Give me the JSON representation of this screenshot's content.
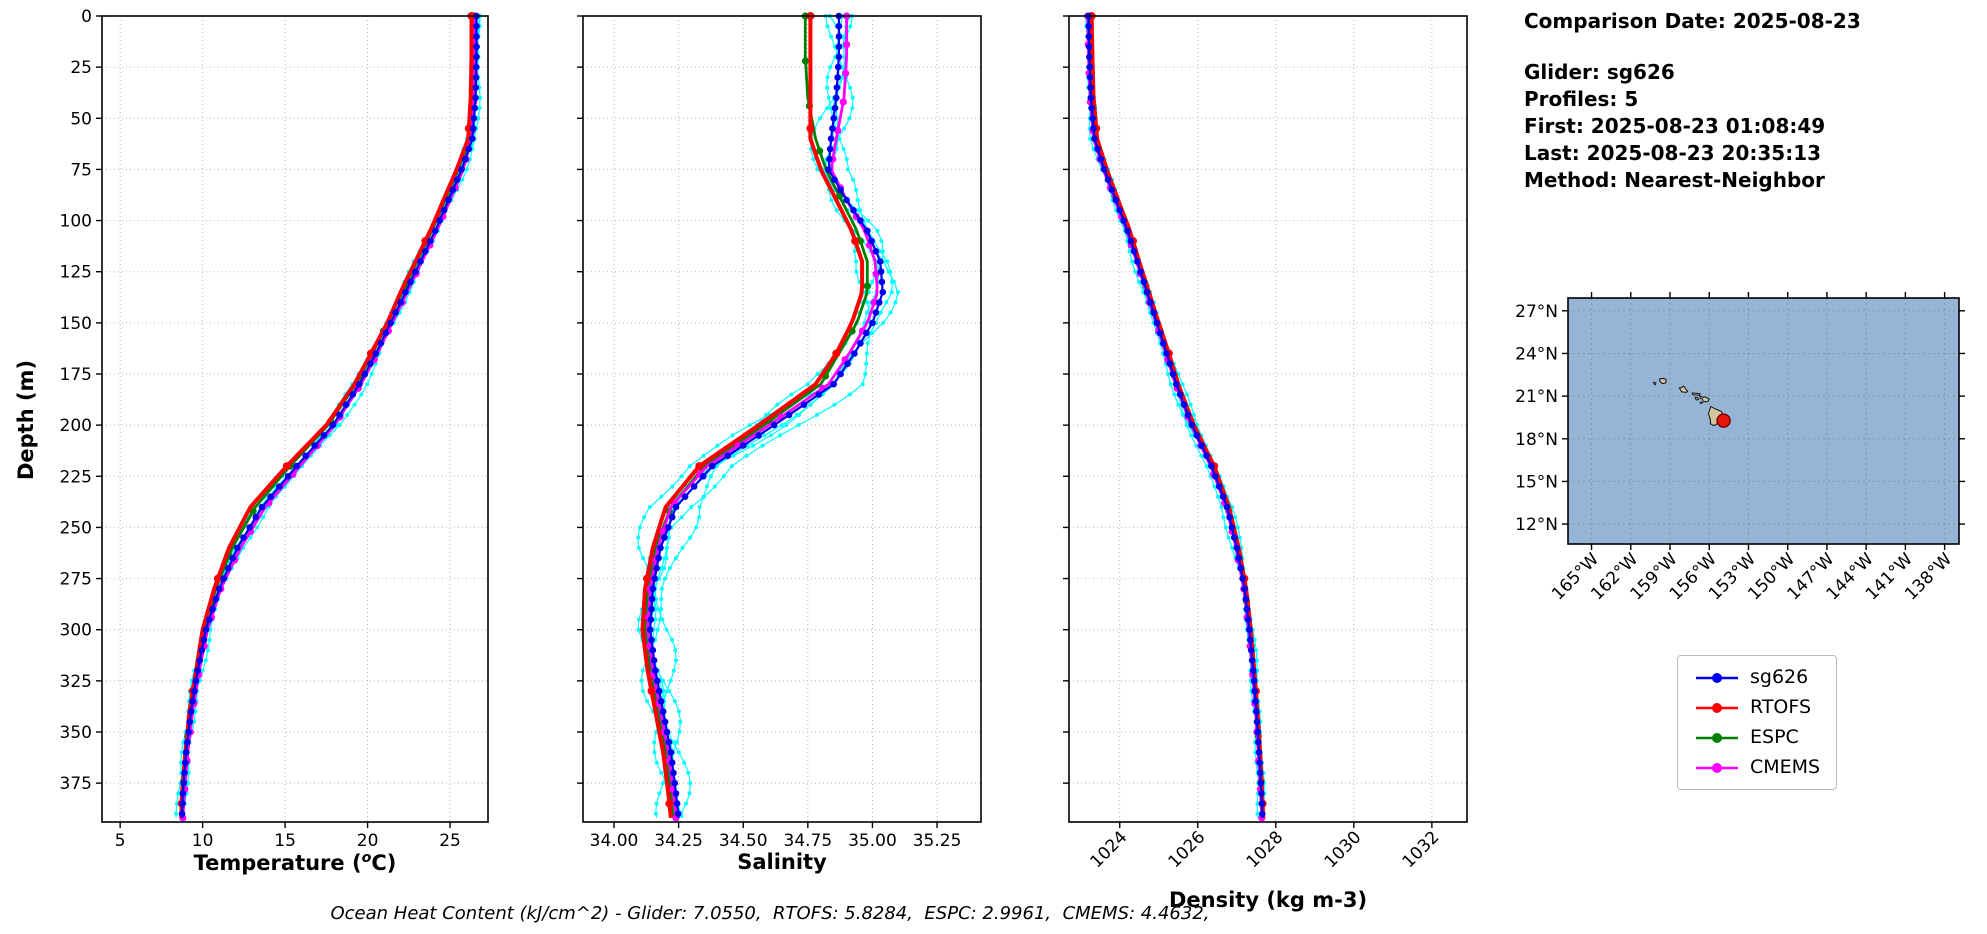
{
  "info": {
    "comparison_date": "Comparison Date: 2025-08-23",
    "glider": "Glider: sg626",
    "profiles": "Profiles: 5",
    "first": "First: 2025-08-23 01:08:49",
    "last": "Last: 2025-08-23 20:35:13",
    "method": "Method: Nearest-Neighbor"
  },
  "footer": {
    "ohc_text": "Ocean Heat Content (kJ/cm^2) - Glider: 7.0550,  RTOFS: 5.8284,  ESPC: 2.9961,  CMEMS: 4.4632,"
  },
  "chart_data": {
    "type": "line",
    "ylabel": "Depth (m)",
    "ylim": [
      0,
      394
    ],
    "yticks": [
      0,
      25,
      50,
      75,
      100,
      125,
      150,
      175,
      200,
      225,
      250,
      275,
      300,
      325,
      350,
      375
    ],
    "depths": [
      0,
      20,
      40,
      60,
      75,
      90,
      105,
      120,
      135,
      150,
      165,
      180,
      200,
      220,
      240,
      260,
      280,
      300,
      320,
      340,
      360,
      380,
      392
    ],
    "panels": [
      {
        "id": "temperature",
        "xlabel": "Temperature (°C)",
        "xlabel_pre": "Temperature (",
        "xlabel_sup": "o",
        "xlabel_post": "C)",
        "xlim": [
          3.9,
          27.3
        ],
        "xticks": [
          5,
          10,
          15,
          20,
          25
        ],
        "xtick_labels": [
          "5",
          "10",
          "15",
          "20",
          "25"
        ],
        "rotate": false,
        "series": [
          {
            "name": "glider-raw",
            "color": "#00ffff",
            "width": 1.2,
            "marker_every": 5,
            "marker_r": 2,
            "jitter": 0.3,
            "profiles": 5,
            "base": "sg626"
          },
          {
            "name": "ESPC",
            "color": "#008000",
            "width": 2.8,
            "marker_every": 22,
            "marker_r": 3.6,
            "values": [
              26.45,
              26.45,
              26.4,
              26.2,
              25.5,
              24.7,
              23.9,
              23.0,
              22.1,
              21.2,
              20.3,
              19.3,
              17.6,
              15.3,
              13.2,
              11.8,
              10.8,
              10.1,
              9.65,
              9.25,
              9.0,
              8.8,
              8.72
            ]
          },
          {
            "name": "CMEMS",
            "color": "#ff00ff",
            "width": 2.8,
            "marker_every": 14,
            "marker_r": 3.6,
            "values": [
              26.5,
              26.5,
              26.45,
              26.3,
              25.8,
              25.0,
              24.2,
              23.3,
              22.4,
              21.5,
              20.6,
              19.6,
              18.0,
              15.9,
              13.8,
              12.3,
              11.1,
              10.3,
              9.8,
              9.4,
              9.1,
              8.9,
              8.8
            ]
          },
          {
            "name": "RTOFS",
            "color": "#ff0000",
            "width": 4,
            "marker_every": 55,
            "marker_r": 4,
            "values": [
              26.3,
              26.3,
              26.25,
              26.1,
              25.4,
              24.6,
              23.8,
              22.9,
              22.0,
              21.2,
              20.2,
              19.2,
              17.5,
              15.1,
              12.9,
              11.6,
              10.7,
              10.0,
              9.6,
              9.2,
              8.95,
              8.75,
              8.7
            ]
          },
          {
            "name": "sg626",
            "color": "#0000ee",
            "width": 2.2,
            "marker_every": 5,
            "marker_r": 3.3,
            "values": [
              26.6,
              26.6,
              26.55,
              26.35,
              25.7,
              24.9,
              24.1,
              23.2,
              22.3,
              21.4,
              20.5,
              19.5,
              17.9,
              15.7,
              13.6,
              12.1,
              11.0,
              10.2,
              9.7,
              9.3,
              9.0,
              8.8,
              8.75
            ]
          }
        ]
      },
      {
        "id": "salinity",
        "xlabel": "Salinity",
        "xlim": [
          33.88,
          35.42
        ],
        "xticks": [
          34.0,
          34.25,
          34.5,
          34.75,
          35.0,
          35.25
        ],
        "xtick_labels": [
          "34.00",
          "34.25",
          "34.50",
          "34.75",
          "35.00",
          "35.25"
        ],
        "rotate": false,
        "series": [
          {
            "name": "glider-raw",
            "color": "#00ffff",
            "width": 1.2,
            "marker_every": 5,
            "marker_r": 2,
            "jitter": 0.07,
            "profiles": 5,
            "base": "sg626"
          },
          {
            "name": "ESPC",
            "color": "#008000",
            "width": 2.8,
            "marker_every": 22,
            "marker_r": 3.6,
            "values": [
              34.74,
              34.74,
              34.75,
              34.78,
              34.82,
              34.88,
              34.94,
              34.98,
              34.98,
              34.94,
              34.87,
              34.8,
              34.58,
              34.35,
              34.22,
              34.16,
              34.13,
              34.12,
              34.14,
              34.17,
              34.2,
              34.22,
              34.23
            ]
          },
          {
            "name": "CMEMS",
            "color": "#ff00ff",
            "width": 2.8,
            "marker_every": 14,
            "marker_r": 3.6,
            "values": [
              34.9,
              34.9,
              34.89,
              34.86,
              34.84,
              34.9,
              34.97,
              35.01,
              35.02,
              34.98,
              34.91,
              34.83,
              34.6,
              34.36,
              34.22,
              34.17,
              34.14,
              34.13,
              34.15,
              34.18,
              34.21,
              34.23,
              34.24
            ]
          },
          {
            "name": "RTOFS",
            "color": "#ff0000",
            "width": 4,
            "marker_every": 55,
            "marker_r": 4,
            "values": [
              34.76,
              34.76,
              34.76,
              34.76,
              34.8,
              34.86,
              34.92,
              34.96,
              34.96,
              34.92,
              34.86,
              34.78,
              34.56,
              34.33,
              34.2,
              34.15,
              34.12,
              34.11,
              34.13,
              34.16,
              34.19,
              34.21,
              34.22
            ]
          },
          {
            "name": "sg626",
            "color": "#0000ee",
            "width": 2.2,
            "marker_every": 5,
            "marker_r": 3.3,
            "values": [
              34.87,
              34.87,
              34.86,
              34.84,
              34.83,
              34.9,
              34.98,
              35.03,
              35.04,
              35.0,
              34.93,
              34.85,
              34.62,
              34.38,
              34.24,
              34.18,
              34.15,
              34.14,
              34.16,
              34.19,
              34.22,
              34.24,
              34.25
            ]
          }
        ]
      },
      {
        "id": "density",
        "xlabel": "Density (kg m-3)",
        "xlim": [
          1022.7,
          1032.9
        ],
        "xticks": [
          1024,
          1026,
          1028,
          1030,
          1032
        ],
        "xtick_labels": [
          "1024",
          "1026",
          "1028",
          "1030",
          "1032"
        ],
        "rotate": true,
        "series": [
          {
            "name": "glider-raw",
            "color": "#00ffff",
            "width": 1.2,
            "marker_every": 5,
            "marker_r": 2,
            "jitter": 0.1,
            "profiles": 5,
            "base": "sg626"
          },
          {
            "name": "ESPC",
            "color": "#008000",
            "width": 2.8,
            "marker_every": 22,
            "marker_r": 3.6,
            "values": [
              1023.24,
              1023.26,
              1023.3,
              1023.38,
              1023.63,
              1023.92,
              1024.22,
              1024.47,
              1024.72,
              1024.97,
              1025.22,
              1025.47,
              1025.87,
              1026.38,
              1026.77,
              1027.02,
              1027.21,
              1027.33,
              1027.43,
              1027.51,
              1027.58,
              1027.64,
              1027.67
            ]
          },
          {
            "name": "CMEMS",
            "color": "#ff00ff",
            "width": 2.8,
            "marker_every": 14,
            "marker_r": 3.6,
            "values": [
              1023.18,
              1023.2,
              1023.24,
              1023.33,
              1023.58,
              1023.88,
              1024.18,
              1024.43,
              1024.68,
              1024.93,
              1025.18,
              1025.43,
              1025.83,
              1026.33,
              1026.73,
              1026.98,
              1027.18,
              1027.3,
              1027.4,
              1027.48,
              1027.55,
              1027.61,
              1027.64
            ]
          },
          {
            "name": "RTOFS",
            "color": "#ff0000",
            "width": 4,
            "marker_every": 55,
            "marker_r": 4,
            "values": [
              1023.28,
              1023.3,
              1023.33,
              1023.42,
              1023.67,
              1023.96,
              1024.26,
              1024.5,
              1024.75,
              1025.0,
              1025.26,
              1025.5,
              1025.9,
              1026.42,
              1026.8,
              1027.05,
              1027.24,
              1027.36,
              1027.45,
              1027.53,
              1027.6,
              1027.65,
              1027.68
            ]
          },
          {
            "name": "sg626",
            "color": "#0000ee",
            "width": 2.2,
            "marker_every": 5,
            "marker_r": 3.3,
            "values": [
              1023.2,
              1023.22,
              1023.26,
              1023.35,
              1023.6,
              1023.9,
              1024.2,
              1024.45,
              1024.7,
              1024.95,
              1025.2,
              1025.45,
              1025.85,
              1026.35,
              1026.75,
              1027.0,
              1027.2,
              1027.32,
              1027.42,
              1027.5,
              1027.57,
              1027.63,
              1027.66
            ]
          }
        ]
      }
    ],
    "legend": [
      {
        "label": "sg626",
        "color": "#0000ee"
      },
      {
        "label": "RTOFS",
        "color": "#ff0000"
      },
      {
        "label": "ESPC",
        "color": "#008000"
      },
      {
        "label": "CMEMS",
        "color": "#ff00ff"
      }
    ],
    "map": {
      "xlim": [
        -166.8,
        -136.9
      ],
      "ylim": [
        10.6,
        27.9
      ],
      "xticks": [
        -165,
        -162,
        -159,
        -156,
        -153,
        -150,
        -147,
        -144,
        -141,
        -138
      ],
      "xtick_labels": [
        "165°W",
        "162°W",
        "159°W",
        "156°W",
        "153°W",
        "150°W",
        "147°W",
        "144°W",
        "141°W",
        "138°W"
      ],
      "yticks": [
        27,
        24,
        21,
        18,
        15,
        12
      ],
      "ytick_labels": [
        "27°N",
        "24°N",
        "21°N",
        "18°N",
        "15°N",
        "12°N"
      ],
      "ocean_color": "#96b5d6",
      "land_color": "#d6c6a0",
      "islands": [
        [
          [
            -155.88,
            20.27
          ],
          [
            -155.6,
            20.12
          ],
          [
            -155.1,
            19.93
          ],
          [
            -154.82,
            19.53
          ],
          [
            -154.98,
            19.33
          ],
          [
            -155.35,
            19.08
          ],
          [
            -155.65,
            18.93
          ],
          [
            -155.9,
            19.05
          ],
          [
            -155.92,
            19.38
          ],
          [
            -156.06,
            19.75
          ]
        ],
        [
          [
            -156.7,
            21.02
          ],
          [
            -156.48,
            20.9
          ],
          [
            -156.32,
            20.95
          ],
          [
            -156.0,
            20.78
          ],
          [
            -156.12,
            20.62
          ],
          [
            -156.45,
            20.6
          ],
          [
            -156.52,
            20.78
          ],
          [
            -156.7,
            20.86
          ]
        ],
        [
          [
            -156.68,
            20.58
          ],
          [
            -156.54,
            20.54
          ],
          [
            -156.6,
            20.48
          ],
          [
            -156.68,
            20.52
          ]
        ],
        [
          [
            -157.06,
            20.92
          ],
          [
            -156.88,
            20.89
          ],
          [
            -156.82,
            20.76
          ],
          [
            -156.96,
            20.72
          ],
          [
            -157.06,
            20.82
          ]
        ],
        [
          [
            -157.3,
            21.22
          ],
          [
            -157.0,
            21.2
          ],
          [
            -156.7,
            21.16
          ],
          [
            -156.75,
            21.06
          ],
          [
            -157.02,
            21.08
          ],
          [
            -157.28,
            21.1
          ]
        ],
        [
          [
            -158.28,
            21.58
          ],
          [
            -158.12,
            21.6
          ],
          [
            -157.96,
            21.71
          ],
          [
            -157.65,
            21.32
          ],
          [
            -157.8,
            21.26
          ],
          [
            -158.12,
            21.3
          ]
        ],
        [
          [
            -159.78,
            22.23
          ],
          [
            -159.45,
            22.24
          ],
          [
            -159.3,
            22.15
          ],
          [
            -159.33,
            21.93
          ],
          [
            -159.6,
            21.88
          ],
          [
            -159.79,
            22.06
          ]
        ],
        [
          [
            -160.24,
            21.98
          ],
          [
            -160.08,
            21.93
          ],
          [
            -160.12,
            21.8
          ],
          [
            -160.24,
            21.88
          ]
        ]
      ],
      "marker": {
        "lon": -154.9,
        "lat": 19.28,
        "color": "#e8160c",
        "edge": "#7a0000",
        "r": 6.5
      }
    }
  }
}
